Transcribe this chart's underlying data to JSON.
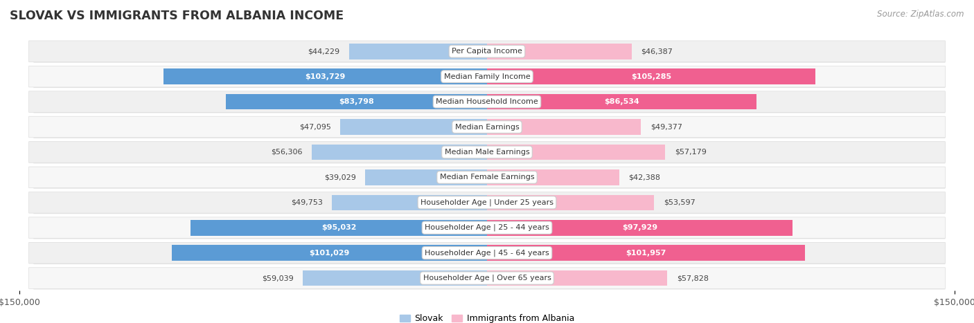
{
  "title": "SLOVAK VS IMMIGRANTS FROM ALBANIA INCOME",
  "source": "Source: ZipAtlas.com",
  "categories": [
    "Per Capita Income",
    "Median Family Income",
    "Median Household Income",
    "Median Earnings",
    "Median Male Earnings",
    "Median Female Earnings",
    "Householder Age | Under 25 years",
    "Householder Age | 25 - 44 years",
    "Householder Age | 45 - 64 years",
    "Householder Age | Over 65 years"
  ],
  "slovak_values": [
    44229,
    103729,
    83798,
    47095,
    56306,
    39029,
    49753,
    95032,
    101029,
    59039
  ],
  "albania_values": [
    46387,
    105285,
    86534,
    49377,
    57179,
    42388,
    53597,
    97929,
    101957,
    57828
  ],
  "slovak_labels": [
    "$44,229",
    "$103,729",
    "$83,798",
    "$47,095",
    "$56,306",
    "$39,029",
    "$49,753",
    "$95,032",
    "$101,029",
    "$59,039"
  ],
  "albania_labels": [
    "$46,387",
    "$105,285",
    "$86,534",
    "$49,377",
    "$57,179",
    "$42,388",
    "$53,597",
    "$97,929",
    "$101,957",
    "$57,828"
  ],
  "slovak_color_light": "#a8c8e8",
  "slovak_color_dark": "#5b9bd5",
  "albania_color_light": "#f8b8cc",
  "albania_color_dark": "#f06090",
  "max_value": 150000,
  "legend_slovak": "Slovak",
  "legend_albania": "Immigrants from Albania",
  "bg_color": "#ffffff",
  "row_bg_even": "#f0f0f0",
  "row_bg_odd": "#f7f7f7",
  "inside_label_threshold": 62000
}
